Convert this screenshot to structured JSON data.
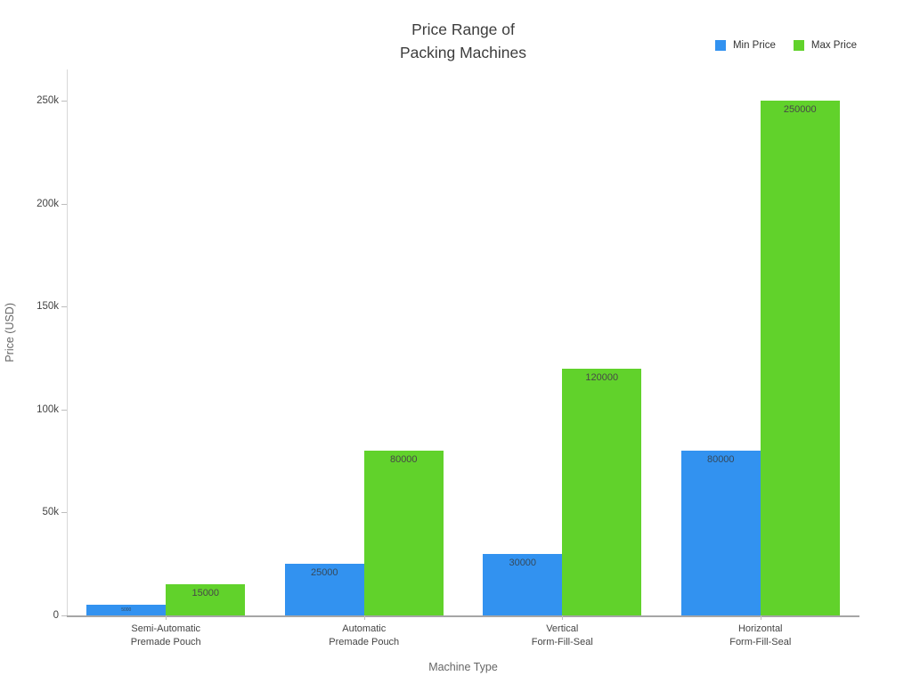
{
  "chart_data": {
    "type": "bar",
    "title": "Price Range of Packing Machines",
    "title_lines": [
      "Price Range of",
      "Packing Machines"
    ],
    "xlabel": "Machine Type",
    "ylabel": "Price (USD)",
    "categories": [
      [
        "Semi-Automatic",
        "Premade Pouch"
      ],
      [
        "Automatic",
        "Premade Pouch"
      ],
      [
        "Vertical",
        "Form-Fill-Seal"
      ],
      [
        "Horizontal",
        "Form-Fill-Seal"
      ]
    ],
    "series": [
      {
        "name": "Min Price",
        "color": "#3292F0",
        "label_color": "#34495c",
        "values": [
          5000,
          25000,
          30000,
          80000
        ]
      },
      {
        "name": "Max Price",
        "color": "#61D22B",
        "label_color": "#474747",
        "values": [
          15000,
          80000,
          120000,
          250000
        ]
      }
    ],
    "bar_value_labels": [
      [
        "5000",
        "25000",
        "30000",
        "80000"
      ],
      [
        "15000",
        "80000",
        "120000",
        "250000"
      ]
    ],
    "ylim": [
      0,
      250000
    ],
    "yticks": [
      {
        "value": 0,
        "label": "0"
      },
      {
        "value": 50000,
        "label": "50k"
      },
      {
        "value": 100000,
        "label": "100k"
      },
      {
        "value": 150000,
        "label": "150k"
      },
      {
        "value": 200000,
        "label": "200k"
      },
      {
        "value": 250000,
        "label": "250k"
      }
    ],
    "grid": false,
    "legend_position": "top-right"
  },
  "colors": {
    "background": "#ffffff",
    "axis_line": "#d8d8d8",
    "x_axis_line": "#a6a6a6",
    "tick_text": "#444444",
    "axis_title_text": "#666666",
    "title_text": "#3d3d3d"
  }
}
